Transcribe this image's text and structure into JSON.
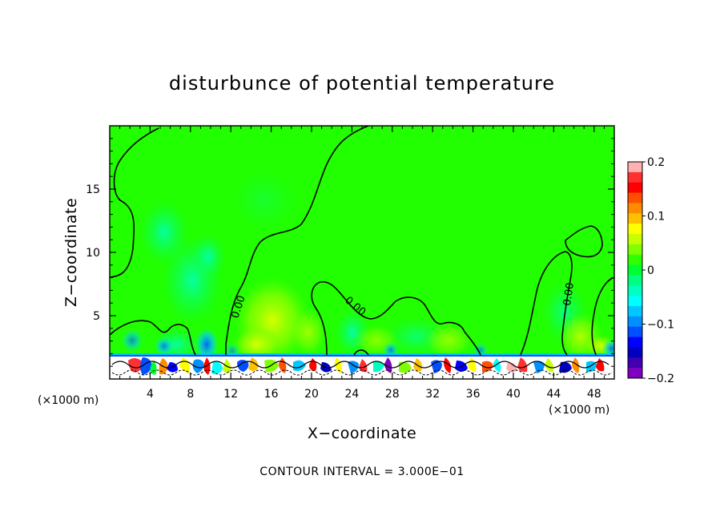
{
  "chart_data": {
    "type": "heatmap",
    "title": "disturbunce of potential temperature",
    "xlabel": "X−coordinate",
    "ylabel": "Z−coordinate",
    "x_unit_left": "(×1000 m)",
    "x_unit_right": "(×1000 m)",
    "xlim": [
      0,
      50
    ],
    "ylim": [
      0,
      20
    ],
    "xticks": [
      4,
      8,
      12,
      16,
      20,
      24,
      28,
      32,
      36,
      40,
      44,
      48
    ],
    "xtick_labels": [
      "4",
      "8",
      "12",
      "16",
      "20",
      "24",
      "28",
      "32",
      "36",
      "40",
      "44",
      "48"
    ],
    "yticks": [
      5,
      10,
      15
    ],
    "ytick_labels": [
      "5",
      "10",
      "15"
    ],
    "colorbar": {
      "range": [
        -0.2,
        0.2
      ],
      "ticks": [
        0.2,
        0.1,
        0,
        -0.1,
        -0.2
      ],
      "tick_labels": [
        "0.2",
        "0.1",
        "0",
        "−0.1",
        "−0.2"
      ],
      "colors": [
        "#ffb0b0",
        "#ff3030",
        "#ff0000",
        "#ff5000",
        "#ff8c00",
        "#ffc000",
        "#ffff00",
        "#c8ff00",
        "#80ff00",
        "#30ff00",
        "#00ff30",
        "#00ff80",
        "#00ffc0",
        "#00ffff",
        "#00c8ff",
        "#0090ff",
        "#0050ff",
        "#0000ff",
        "#0000c0",
        "#4000b0",
        "#8000c0"
      ]
    },
    "contour_labels": [
      {
        "text": "0.00",
        "x": 12.6,
        "z": 6.5
      },
      {
        "text": "0.00",
        "x": 24.5,
        "z": 5.2
      },
      {
        "text": "0.00",
        "x": 45.5,
        "z": 7.5
      }
    ],
    "footer": "CONTOUR INTERVAL = 3.000E−01",
    "colors": {
      "background_field": "#22ff00",
      "contour": "#000000"
    }
  }
}
